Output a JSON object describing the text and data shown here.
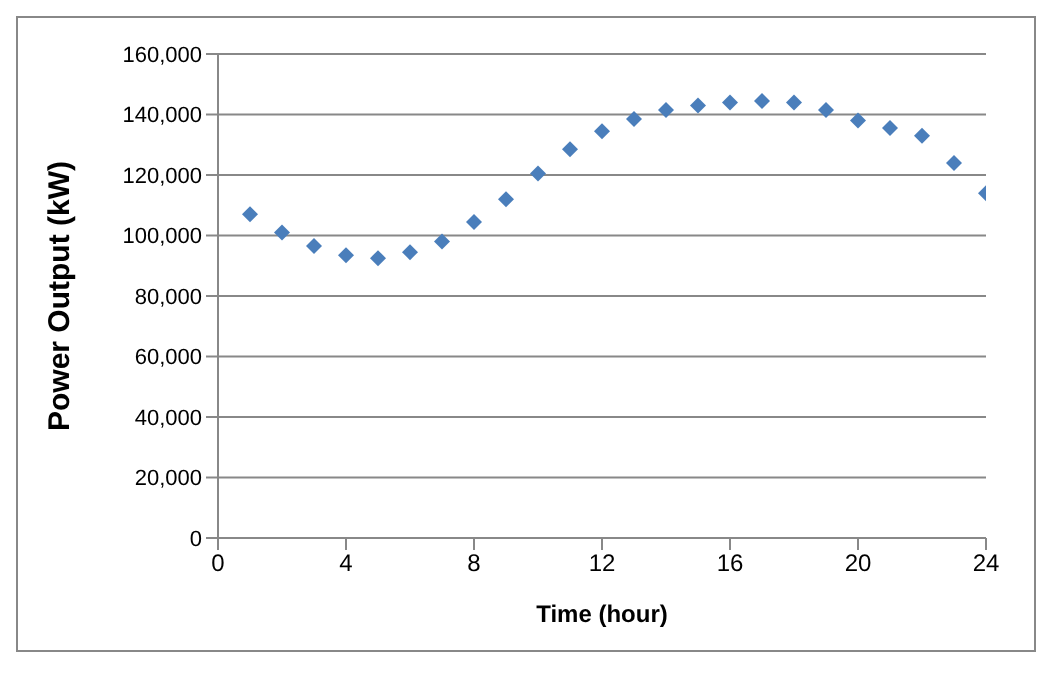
{
  "chart_data": {
    "type": "scatter",
    "xlabel": "Time (hour)",
    "ylabel": "Power Output (kW)",
    "x": [
      1,
      2,
      3,
      4,
      5,
      6,
      7,
      8,
      9,
      10,
      11,
      12,
      13,
      14,
      15,
      16,
      17,
      18,
      19,
      20,
      21,
      22,
      23,
      24
    ],
    "values": [
      107000,
      101000,
      96500,
      93500,
      92500,
      94500,
      98000,
      104500,
      112000,
      120500,
      128500,
      134500,
      138500,
      141500,
      143000,
      144000,
      144500,
      144000,
      141500,
      138000,
      135500,
      133000,
      124000,
      114000
    ],
    "color": "#4a7ebb",
    "marker": "diamond",
    "grid": "y",
    "legend": false,
    "xlim": [
      0,
      24
    ],
    "xticks": [
      0,
      4,
      8,
      12,
      16,
      20,
      24
    ],
    "ylim": [
      0,
      160000
    ],
    "yticks": [
      {
        "value": 0,
        "label": "0"
      },
      {
        "value": 20000,
        "label": "20,000"
      },
      {
        "value": 40000,
        "label": "40,000"
      },
      {
        "value": 60000,
        "label": "60,000"
      },
      {
        "value": 80000,
        "label": "80,000"
      },
      {
        "value": 100000,
        "label": "100,000"
      },
      {
        "value": 120000,
        "label": "120,000"
      },
      {
        "value": 140000,
        "label": "140,000"
      },
      {
        "value": 160000,
        "label": "160,000"
      }
    ]
  }
}
